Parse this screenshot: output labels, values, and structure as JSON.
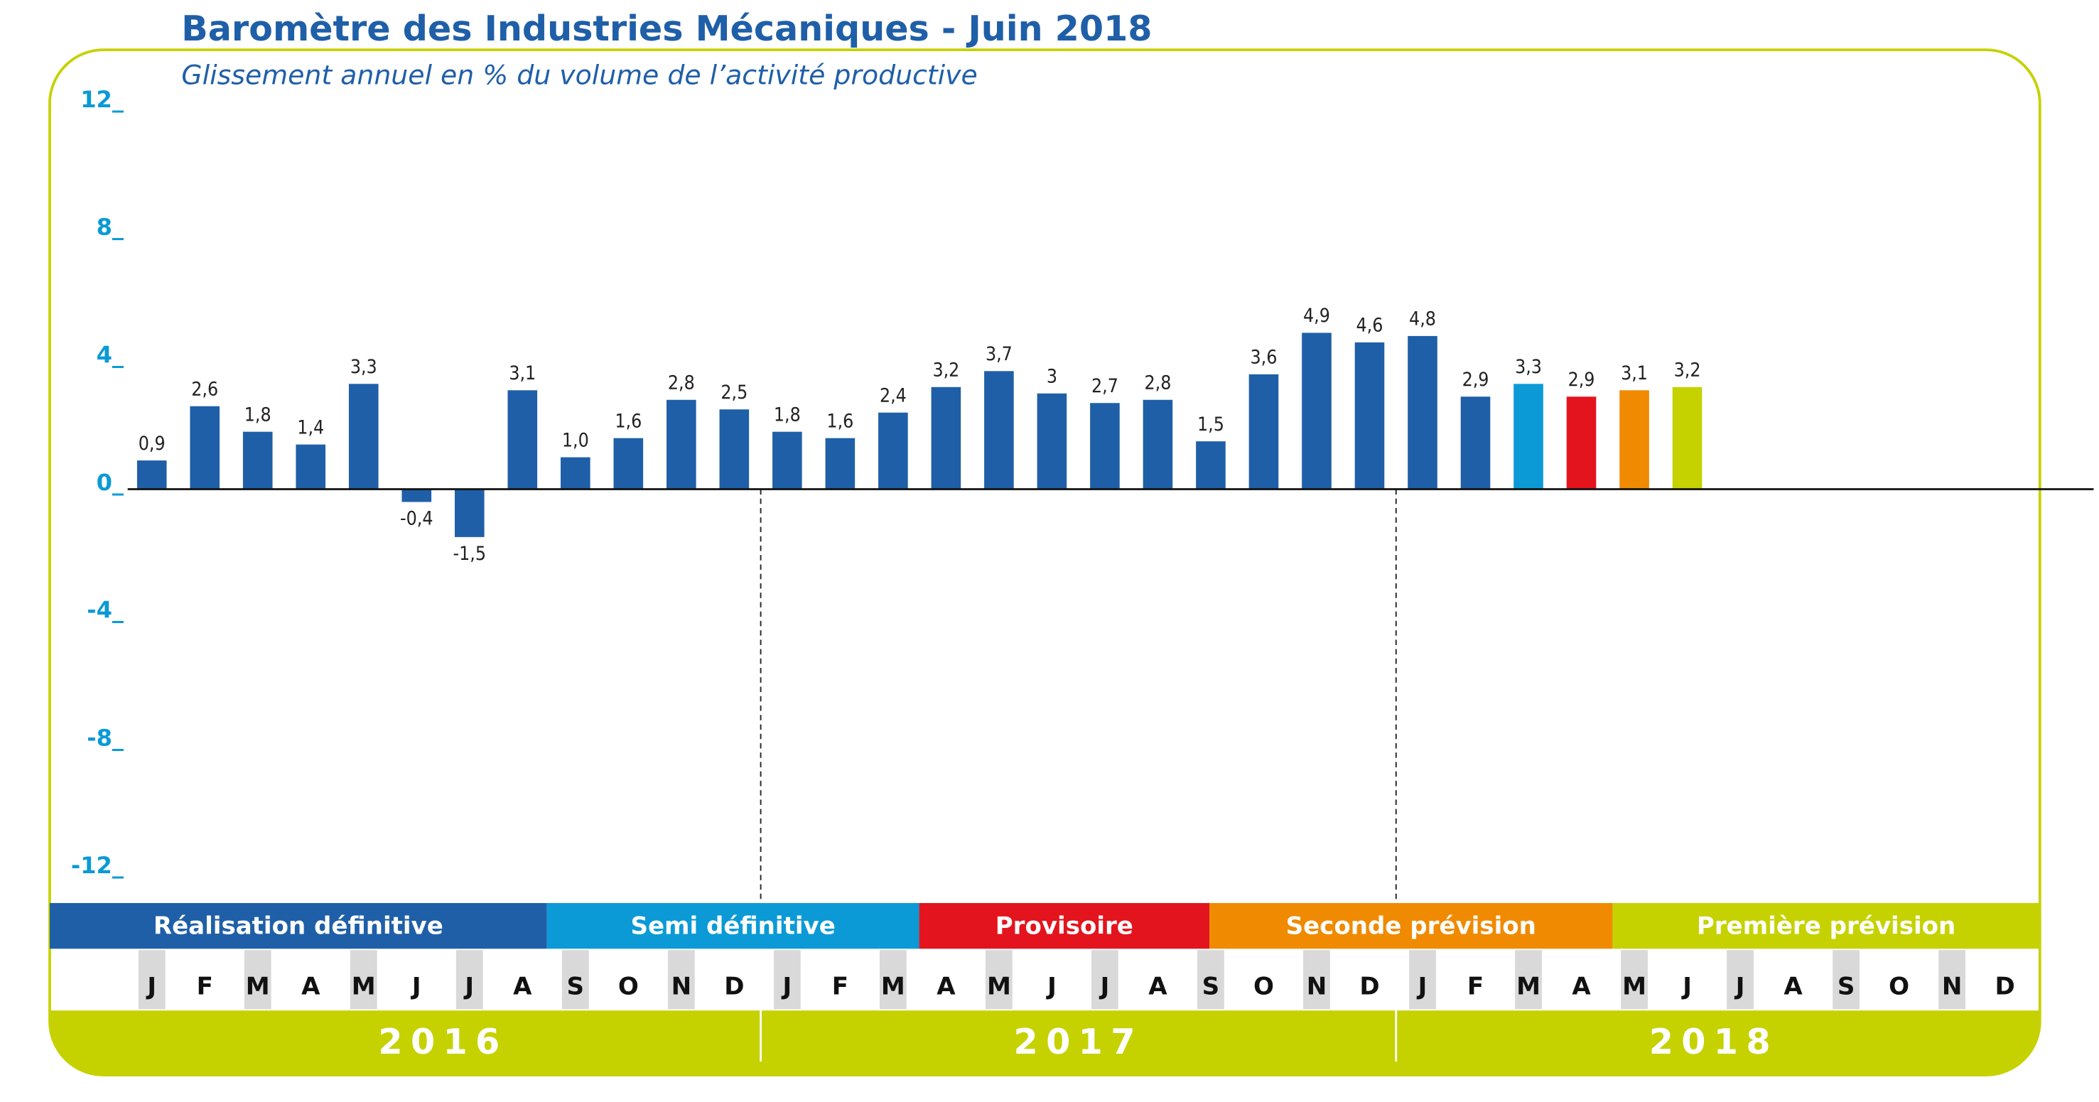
{
  "chart_data": {
    "type": "bar",
    "title": "Baromètre des Industries Mécaniques - Juin 2018",
    "subtitle": "Glissement annuel en % du volume de l’activité productive",
    "categories": [
      "J",
      "F",
      "M",
      "A",
      "M",
      "J",
      "J",
      "A",
      "S",
      "O",
      "N",
      "D",
      "J",
      "F",
      "M",
      "A",
      "M",
      "J",
      "J",
      "A",
      "S",
      "O",
      "N",
      "D",
      "J",
      "F",
      "M",
      "A",
      "M",
      "J",
      "J",
      "A",
      "S",
      "O",
      "N",
      "D"
    ],
    "years": [
      "2016",
      "2017",
      "2018"
    ],
    "values": [
      0.9,
      2.6,
      1.8,
      1.4,
      3.3,
      -0.4,
      -1.5,
      3.1,
      1.0,
      1.6,
      2.8,
      2.5,
      1.8,
      1.6,
      2.4,
      3.2,
      3.7,
      3,
      2.7,
      2.8,
      1.5,
      3.6,
      4.9,
      4.6,
      4.8,
      2.9,
      3.3,
      2.9,
      3.1,
      3.2,
      null,
      null,
      null,
      null,
      null,
      null
    ],
    "value_labels": [
      "0,9",
      "2,6",
      "1,8",
      "1,4",
      "3,3",
      "-0,4",
      "-1,5",
      "3,1",
      "1,0",
      "1,6",
      "2,8",
      "2,5",
      "1,8",
      "1,6",
      "2,4",
      "3,2",
      "3,7",
      "3",
      "2,7",
      "2,8",
      "1,5",
      "3,6",
      "4,9",
      "4,6",
      "4,8",
      "2,9",
      "3,3",
      "2,9",
      "3,1",
      "3,2",
      null,
      null,
      null,
      null,
      null,
      null
    ],
    "colors": [
      "#1f5fa8",
      "#1f5fa8",
      "#1f5fa8",
      "#1f5fa8",
      "#1f5fa8",
      "#1f5fa8",
      "#1f5fa8",
      "#1f5fa8",
      "#1f5fa8",
      "#1f5fa8",
      "#1f5fa8",
      "#1f5fa8",
      "#1f5fa8",
      "#1f5fa8",
      "#1f5fa8",
      "#1f5fa8",
      "#1f5fa8",
      "#1f5fa8",
      "#1f5fa8",
      "#1f5fa8",
      "#1f5fa8",
      "#1f5fa8",
      "#1f5fa8",
      "#1f5fa8",
      "#1f5fa8",
      "#1f5fa8",
      "#0b9ad6",
      "#e3141d",
      "#f08a00",
      "#c5d200",
      null,
      null,
      null,
      null,
      null,
      null
    ],
    "phases": [
      {
        "name": "Réalisation définitive",
        "color": "#1f5fa8"
      },
      {
        "name": "Semi définitive",
        "color": "#0b9ad6"
      },
      {
        "name": "Provisoire",
        "color": "#e3141d"
      },
      {
        "name": "Seconde prévision",
        "color": "#f08a00"
      },
      {
        "name": "Première prévision",
        "color": "#c5d200"
      }
    ],
    "ylim": [
      -12,
      12
    ],
    "yticks": [
      {
        "value": 12,
        "label": "12_"
      },
      {
        "value": 8,
        "label": "8_"
      },
      {
        "value": 4,
        "label": "4_"
      },
      {
        "value": 0,
        "label": "0_"
      },
      {
        "value": -4,
        "label": "-4_"
      },
      {
        "value": -8,
        "label": "-8_"
      },
      {
        "value": -12,
        "label": "-12_"
      }
    ]
  }
}
